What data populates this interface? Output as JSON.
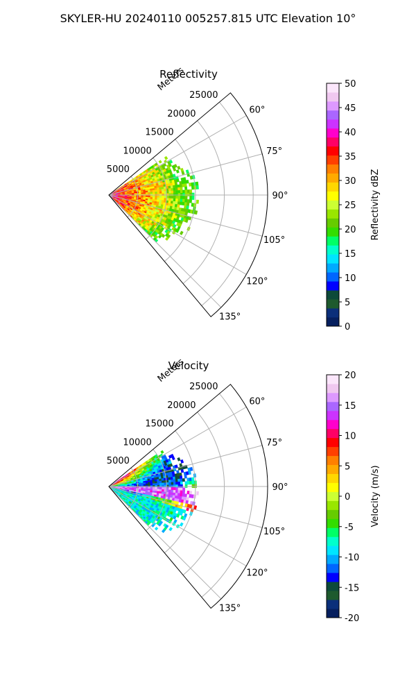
{
  "suptitle": "SKYLER-HU  20240110  005257.815 UTC Elevation 10°",
  "chart_data": [
    {
      "type": "heatmap",
      "subtype": "polar-sector-ppi",
      "title": "Reflectivity",
      "range_label": "Meters",
      "range_ticks": [
        "5000",
        "10000",
        "15000",
        "20000",
        "25000"
      ],
      "rmax": 27500,
      "azimuth_range_deg": [
        50,
        140
      ],
      "angle_ticks": [
        "60°",
        "75°",
        "90°",
        "105°",
        "120°",
        "135°"
      ],
      "angle_tick_values": [
        60,
        75,
        90,
        105,
        120,
        135
      ],
      "data_extent_m": [
        0,
        16000
      ],
      "colorbar": {
        "label": "Reflectivity dBZ",
        "vmin": 0,
        "vmax": 50,
        "ticks": [
          "0",
          "5",
          "10",
          "15",
          "20",
          "25",
          "30",
          "35",
          "40",
          "45",
          "50"
        ]
      },
      "field_profile": {
        "description_of_values": "range-dependent dBZ",
        "near_core_dbz": 38,
        "mid_dbz": 30,
        "edge_dbz": 20
      },
      "colors": [
        "#061f5e",
        "#0b2f7a",
        "#1e5a2e",
        "#0d4a3a",
        "#0000ff",
        "#0066ff",
        "#00aaff",
        "#00e5ff",
        "#00ffcc",
        "#00ff66",
        "#33dd00",
        "#66cc00",
        "#99e600",
        "#ccff33",
        "#ffff00",
        "#ffd700",
        "#ffaa00",
        "#ff8000",
        "#ff4000",
        "#ff0000",
        "#ff0066",
        "#ff00cc",
        "#cc33ff",
        "#aa66ff",
        "#dd99ff",
        "#f0c8f0",
        "#fbe6fb"
      ]
    },
    {
      "type": "heatmap",
      "subtype": "polar-sector-ppi",
      "title": "Velocity",
      "range_label": "Meters",
      "range_ticks": [
        "5000",
        "10000",
        "15000",
        "20000",
        "25000"
      ],
      "rmax": 27500,
      "azimuth_range_deg": [
        50,
        140
      ],
      "angle_ticks": [
        "60°",
        "75°",
        "90°",
        "105°",
        "120°",
        "135°"
      ],
      "angle_tick_values": [
        60,
        75,
        90,
        105,
        120,
        135
      ],
      "data_extent_m": [
        0,
        16000
      ],
      "colorbar": {
        "label": "Velocity (m/s)",
        "vmin": -20,
        "vmax": 20,
        "ticks": [
          "-20",
          "-15",
          "-10",
          "-5",
          "0",
          "5",
          "10",
          "15",
          "20"
        ]
      },
      "colors": [
        "#061f5e",
        "#0b2f7a",
        "#1e5a2e",
        "#0d4a3a",
        "#0000ff",
        "#0066ff",
        "#00aaff",
        "#00e5ff",
        "#00ffcc",
        "#00ff66",
        "#33dd00",
        "#66cc00",
        "#99e600",
        "#ccff33",
        "#ffff00",
        "#ffd700",
        "#ffaa00",
        "#ff8000",
        "#ff4000",
        "#ff0000",
        "#ff0066",
        "#ff00cc",
        "#cc33ff",
        "#aa66ff",
        "#dd99ff",
        "#f0c8f0",
        "#fbe6fb"
      ]
    }
  ]
}
